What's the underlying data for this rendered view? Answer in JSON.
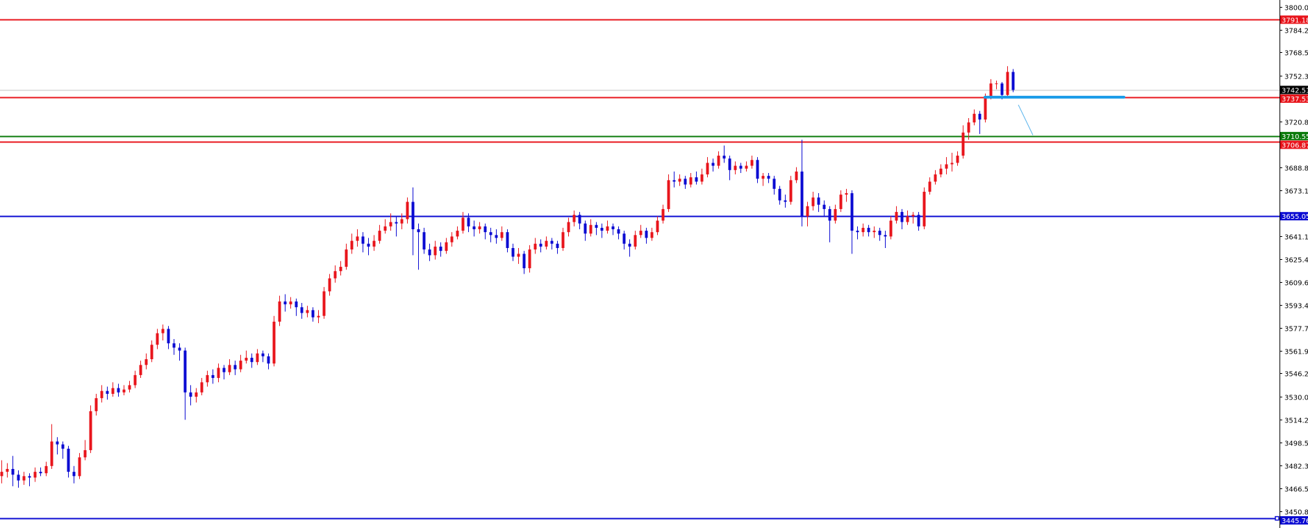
{
  "chart_data": {
    "type": "candlestick",
    "title": "",
    "ylim": [
      3440,
      3805
    ],
    "colors": {
      "bull": "#e8141b",
      "bear": "#0a0ad2",
      "axis": "#000000",
      "current_price_line": "#c0c0c0"
    },
    "y_ticks": [
      "3800.00",
      "3784.25",
      "3768.50",
      "3752.30",
      "3720.80",
      "3688.85",
      "3673.10",
      "3641.15",
      "3625.40",
      "3609.65",
      "3593.45",
      "3577.70",
      "3561.95",
      "3546.20",
      "3530.00",
      "3514.25",
      "3498.50",
      "3482.30",
      "3466.55",
      "3450.80"
    ],
    "current_price": {
      "value": 3742.51,
      "label": "3742.51",
      "color": "#000000"
    },
    "horizontal_levels": [
      {
        "value": 3791.18,
        "label": "3791.18",
        "color": "#e8141b"
      },
      {
        "value": 3737.53,
        "label": "3737.53",
        "color": "#e8141b"
      },
      {
        "value": 3710.55,
        "label": "3710.55",
        "color": "#0a7a0a"
      },
      {
        "value": 3706.87,
        "label": "3706.87",
        "color": "#e8141b"
      },
      {
        "value": 3655.05,
        "label": "3655.05",
        "color": "#0a0ad2"
      },
      {
        "value": 3445.76,
        "label": "3445.76",
        "color": "#0a0ad2"
      }
    ],
    "drawn_objects": [
      {
        "type": "thick-segment",
        "color": "#1a9be8",
        "value": 3737.53,
        "from_candle": 177,
        "to_candle_offset": 20
      },
      {
        "type": "arrow-line",
        "color": "#5ab4ec",
        "from": {
          "candle_offset": 1,
          "value": 3732.2
        },
        "to": {
          "candle_offset": 3,
          "value": 3711.2
        }
      }
    ],
    "ohlc": [
      [
        3475,
        3486,
        3470,
        3478
      ],
      [
        3478,
        3484,
        3474,
        3480
      ],
      [
        3480,
        3489,
        3468,
        3476
      ],
      [
        3476,
        3479,
        3467,
        3472
      ],
      [
        3472,
        3478,
        3469,
        3475
      ],
      [
        3475,
        3477,
        3468,
        3474
      ],
      [
        3474,
        3481,
        3471,
        3478
      ],
      [
        3478,
        3481,
        3475,
        3477
      ],
      [
        3477,
        3485,
        3475,
        3482
      ],
      [
        3482,
        3511,
        3480,
        3499
      ],
      [
        3499,
        3502,
        3490,
        3497
      ],
      [
        3497,
        3499,
        3487,
        3494
      ],
      [
        3494,
        3496,
        3474,
        3478
      ],
      [
        3478,
        3482,
        3470,
        3475
      ],
      [
        3475,
        3491,
        3473,
        3488
      ],
      [
        3488,
        3500,
        3486,
        3493
      ],
      [
        3493,
        3524,
        3491,
        3520
      ],
      [
        3520,
        3532,
        3517,
        3529
      ],
      [
        3529,
        3538,
        3526,
        3534
      ],
      [
        3534,
        3537,
        3528,
        3532
      ],
      [
        3532,
        3540,
        3530,
        3536
      ],
      [
        3536,
        3539,
        3530,
        3533
      ],
      [
        3533,
        3538,
        3531,
        3535
      ],
      [
        3535,
        3541,
        3533,
        3538
      ],
      [
        3538,
        3548,
        3536,
        3545
      ],
      [
        3545,
        3555,
        3543,
        3552
      ],
      [
        3552,
        3560,
        3549,
        3556
      ],
      [
        3556,
        3569,
        3554,
        3566
      ],
      [
        3566,
        3577,
        3563,
        3574
      ],
      [
        3574,
        3580,
        3569,
        3577
      ],
      [
        3577,
        3579,
        3563,
        3567
      ],
      [
        3567,
        3570,
        3559,
        3564
      ],
      [
        3564,
        3567,
        3555,
        3562
      ],
      [
        3562,
        3564,
        3514,
        3533
      ],
      [
        3533,
        3538,
        3524,
        3530
      ],
      [
        3530,
        3536,
        3526,
        3533
      ],
      [
        3533,
        3543,
        3531,
        3540
      ],
      [
        3540,
        3548,
        3537,
        3545
      ],
      [
        3545,
        3549,
        3539,
        3543
      ],
      [
        3543,
        3553,
        3540,
        3550
      ],
      [
        3550,
        3552,
        3542,
        3547
      ],
      [
        3547,
        3556,
        3545,
        3552
      ],
      [
        3552,
        3555,
        3545,
        3549
      ],
      [
        3549,
        3559,
        3547,
        3555
      ],
      [
        3555,
        3562,
        3553,
        3557
      ],
      [
        3557,
        3560,
        3550,
        3554
      ],
      [
        3554,
        3563,
        3552,
        3560
      ],
      [
        3560,
        3562,
        3554,
        3558
      ],
      [
        3558,
        3560,
        3549,
        3553
      ],
      [
        3553,
        3586,
        3551,
        3582
      ],
      [
        3582,
        3600,
        3579,
        3596
      ],
      [
        3596,
        3601,
        3589,
        3594
      ],
      [
        3594,
        3599,
        3591,
        3596
      ],
      [
        3596,
        3598,
        3586,
        3592
      ],
      [
        3592,
        3595,
        3584,
        3588
      ],
      [
        3588,
        3593,
        3585,
        3590
      ],
      [
        3590,
        3592,
        3582,
        3585
      ],
      [
        3585,
        3590,
        3581,
        3586
      ],
      [
        3586,
        3606,
        3584,
        3603
      ],
      [
        3603,
        3615,
        3600,
        3612
      ],
      [
        3612,
        3621,
        3609,
        3617
      ],
      [
        3617,
        3624,
        3614,
        3620
      ],
      [
        3620,
        3636,
        3618,
        3632
      ],
      [
        3632,
        3643,
        3629,
        3638
      ],
      [
        3638,
        3646,
        3634,
        3641
      ],
      [
        3641,
        3644,
        3630,
        3636
      ],
      [
        3636,
        3640,
        3628,
        3634
      ],
      [
        3634,
        3642,
        3631,
        3638
      ],
      [
        3638,
        3649,
        3636,
        3645
      ],
      [
        3645,
        3653,
        3643,
        3648
      ],
      [
        3648,
        3657,
        3645,
        3651
      ],
      [
        3651,
        3655,
        3641,
        3650
      ],
      [
        3650,
        3657,
        3646,
        3653
      ],
      [
        3653,
        3668,
        3650,
        3665
      ],
      [
        3665,
        3675,
        3628,
        3646
      ],
      [
        3646,
        3650,
        3618,
        3644
      ],
      [
        3644,
        3647,
        3629,
        3632
      ],
      [
        3632,
        3636,
        3624,
        3628
      ],
      [
        3628,
        3638,
        3625,
        3634
      ],
      [
        3634,
        3637,
        3627,
        3631
      ],
      [
        3631,
        3640,
        3629,
        3637
      ],
      [
        3637,
        3644,
        3634,
        3641
      ],
      [
        3641,
        3648,
        3639,
        3645
      ],
      [
        3645,
        3658,
        3643,
        3654
      ],
      [
        3654,
        3657,
        3644,
        3648
      ],
      [
        3648,
        3652,
        3641,
        3646
      ],
      [
        3646,
        3651,
        3643,
        3648
      ],
      [
        3648,
        3650,
        3639,
        3644
      ],
      [
        3644,
        3647,
        3637,
        3642
      ],
      [
        3642,
        3646,
        3636,
        3640
      ],
      [
        3640,
        3648,
        3638,
        3644
      ],
      [
        3644,
        3646,
        3630,
        3633
      ],
      [
        3633,
        3636,
        3624,
        3627
      ],
      [
        3627,
        3633,
        3622,
        3629
      ],
      [
        3629,
        3631,
        3615,
        3619
      ],
      [
        3619,
        3635,
        3616,
        3632
      ],
      [
        3632,
        3640,
        3629,
        3636
      ],
      [
        3636,
        3639,
        3630,
        3634
      ],
      [
        3634,
        3641,
        3632,
        3638
      ],
      [
        3638,
        3640,
        3632,
        3636
      ],
      [
        3636,
        3638,
        3629,
        3633
      ],
      [
        3633,
        3647,
        3631,
        3644
      ],
      [
        3644,
        3654,
        3641,
        3651
      ],
      [
        3651,
        3659,
        3648,
        3656
      ],
      [
        3656,
        3658,
        3646,
        3650
      ],
      [
        3650,
        3652,
        3638,
        3643
      ],
      [
        3643,
        3653,
        3641,
        3649
      ],
      [
        3649,
        3651,
        3642,
        3647
      ],
      [
        3647,
        3650,
        3640,
        3645
      ],
      [
        3645,
        3652,
        3643,
        3648
      ],
      [
        3648,
        3650,
        3642,
        3646
      ],
      [
        3646,
        3648,
        3639,
        3643
      ],
      [
        3643,
        3645,
        3632,
        3636
      ],
      [
        3636,
        3639,
        3627,
        3634
      ],
      [
        3634,
        3645,
        3632,
        3642
      ],
      [
        3642,
        3649,
        3640,
        3645
      ],
      [
        3645,
        3647,
        3636,
        3640
      ],
      [
        3640,
        3647,
        3638,
        3644
      ],
      [
        3644,
        3655,
        3642,
        3652
      ],
      [
        3652,
        3663,
        3650,
        3660
      ],
      [
        3660,
        3684,
        3658,
        3680
      ],
      [
        3680,
        3686,
        3675,
        3679
      ],
      [
        3679,
        3684,
        3676,
        3681
      ],
      [
        3681,
        3683,
        3674,
        3677
      ],
      [
        3677,
        3685,
        3675,
        3682
      ],
      [
        3682,
        3686,
        3677,
        3679
      ],
      [
        3679,
        3688,
        3677,
        3684
      ],
      [
        3684,
        3696,
        3682,
        3692
      ],
      [
        3692,
        3695,
        3686,
        3690
      ],
      [
        3690,
        3700,
        3688,
        3697
      ],
      [
        3697,
        3704,
        3692,
        3695
      ],
      [
        3695,
        3697,
        3680,
        3687
      ],
      [
        3687,
        3693,
        3684,
        3690
      ],
      [
        3690,
        3692,
        3685,
        3688
      ],
      [
        3688,
        3693,
        3686,
        3690
      ],
      [
        3690,
        3697,
        3688,
        3694
      ],
      [
        3694,
        3696,
        3678,
        3681
      ],
      [
        3681,
        3685,
        3676,
        3683
      ],
      [
        3683,
        3685,
        3678,
        3681
      ],
      [
        3681,
        3683,
        3670,
        3674
      ],
      [
        3674,
        3676,
        3663,
        3666
      ],
      [
        3666,
        3670,
        3661,
        3665
      ],
      [
        3665,
        3683,
        3663,
        3680
      ],
      [
        3680,
        3689,
        3678,
        3686
      ],
      [
        3686,
        3708,
        3648,
        3655
      ],
      [
        3655,
        3665,
        3648,
        3662
      ],
      [
        3662,
        3672,
        3659,
        3668
      ],
      [
        3668,
        3671,
        3658,
        3663
      ],
      [
        3663,
        3666,
        3655,
        3660
      ],
      [
        3660,
        3662,
        3637,
        3652
      ],
      [
        3652,
        3663,
        3650,
        3660
      ],
      [
        3660,
        3673,
        3658,
        3670
      ],
      [
        3670,
        3674,
        3665,
        3671
      ],
      [
        3671,
        3673,
        3629,
        3645
      ],
      [
        3645,
        3648,
        3639,
        3644
      ],
      [
        3644,
        3650,
        3641,
        3647
      ],
      [
        3647,
        3649,
        3641,
        3644
      ],
      [
        3644,
        3648,
        3640,
        3645
      ],
      [
        3645,
        3647,
        3638,
        3642
      ],
      [
        3642,
        3645,
        3633,
        3641
      ],
      [
        3641,
        3655,
        3639,
        3652
      ],
      [
        3652,
        3662,
        3650,
        3658
      ],
      [
        3658,
        3660,
        3646,
        3651
      ],
      [
        3651,
        3659,
        3649,
        3655
      ],
      [
        3655,
        3658,
        3650,
        3656
      ],
      [
        3656,
        3658,
        3645,
        3648
      ],
      [
        3648,
        3675,
        3646,
        3672
      ],
      [
        3672,
        3682,
        3670,
        3679
      ],
      [
        3679,
        3687,
        3677,
        3684
      ],
      [
        3684,
        3691,
        3682,
        3688
      ],
      [
        3688,
        3696,
        3684,
        3691
      ],
      [
        3691,
        3699,
        3686,
        3692
      ],
      [
        3692,
        3700,
        3690,
        3697
      ],
      [
        3697,
        3718,
        3695,
        3713
      ],
      [
        3713,
        3723,
        3708,
        3720
      ],
      [
        3720,
        3729,
        3718,
        3726
      ],
      [
        3726,
        3728,
        3712,
        3722
      ],
      [
        3722,
        3740,
        3720,
        3738
      ],
      [
        3738,
        3750,
        3736,
        3747
      ],
      [
        3747,
        3749,
        3743,
        3747
      ],
      [
        3747,
        3748,
        3736,
        3739
      ],
      [
        3739,
        3759,
        3737,
        3755
      ],
      [
        3755,
        3757,
        3741,
        3742.51
      ]
    ]
  }
}
